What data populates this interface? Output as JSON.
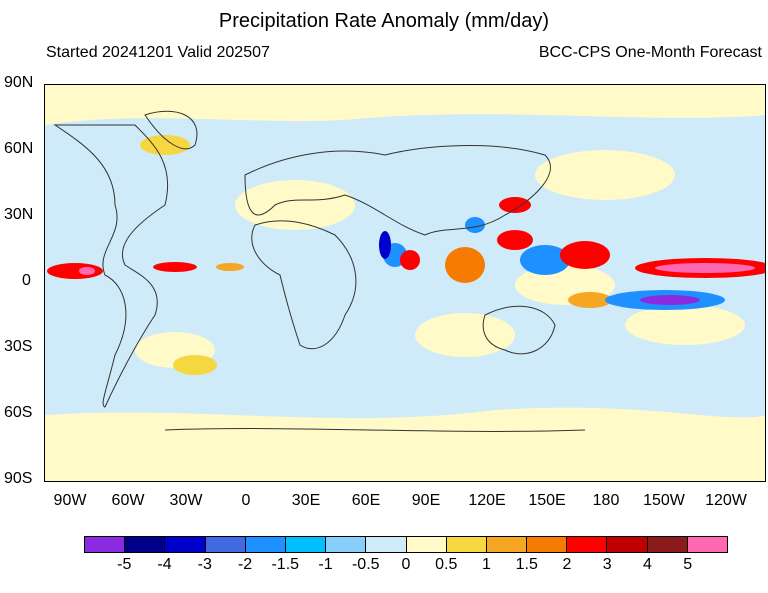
{
  "header": {
    "title": "Precipitation Rate Anomaly (mm/day)",
    "started": "Started 20241201  Valid 202507",
    "source": "BCC-CPS One-Month Forecast"
  },
  "map": {
    "lat_labels": [
      "90N",
      "60N",
      "30N",
      "0",
      "30S",
      "60S",
      "90S"
    ],
    "lon_labels": [
      "90W",
      "60W",
      "30W",
      "0",
      "30E",
      "60E",
      "90E",
      "120E",
      "150E",
      "180",
      "150W",
      "120W"
    ],
    "background_color": "#cfeaf8",
    "continent_outline_color": "#333333"
  },
  "colorbar": {
    "colors": [
      "#8a2be2",
      "#00008b",
      "#0000cd",
      "#4169e1",
      "#1e90ff",
      "#00bfff",
      "#87cefa",
      "#cfeaf8",
      "#fffac8",
      "#f5d742",
      "#f5a623",
      "#f57c00",
      "#ff0000",
      "#c00000",
      "#8b1a1a",
      "#ff69b4"
    ],
    "labels": [
      "-5",
      "-4",
      "-3",
      "-2",
      "-1.5",
      "-1",
      "-0.5",
      "0",
      "0.5",
      "1",
      "1.5",
      "2",
      "3",
      "4",
      "5"
    ]
  }
}
